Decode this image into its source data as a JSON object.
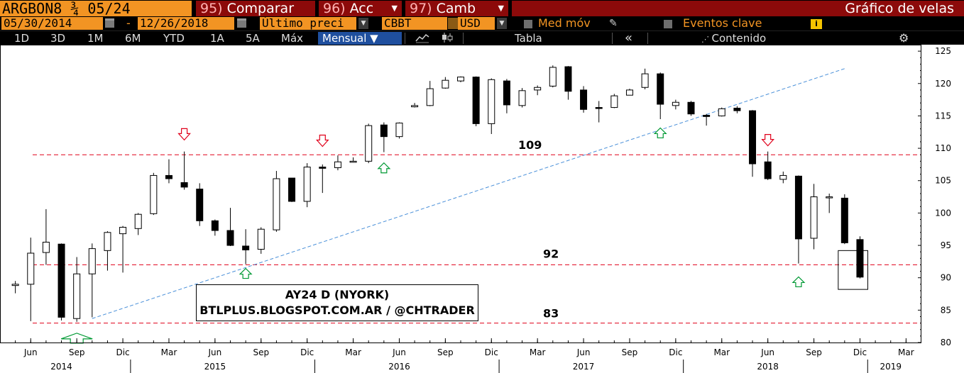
{
  "header": {
    "ticker": "ARGBON8 ¾ 05/24",
    "fn": [
      {
        "num": "95)",
        "label": "Comparar"
      },
      {
        "num": "96)",
        "label": "Acc"
      },
      {
        "num": "97)",
        "label": "Camb"
      }
    ],
    "title": "Gráfico de velas"
  },
  "controls": {
    "start_date": "05/30/2014",
    "dash": "-",
    "end_date": "12/26/2018",
    "price_field": "Último preci",
    "source": "CBBT",
    "currency": "USD",
    "mov_avg": "Med móv",
    "key_events": "Eventos clave",
    "info": "i"
  },
  "toolbar": {
    "ranges": [
      "1D",
      "3D",
      "1M",
      "6M",
      "YTD",
      "1A",
      "5A",
      "Máx"
    ],
    "period": "Mensual",
    "period_arrow": "▼",
    "table": "Tabla",
    "collapse": "«",
    "content": "Contenido",
    "settings_icon": "gear-icon"
  },
  "chart_data": {
    "type": "candlestick",
    "title": "",
    "xlabel": "",
    "ylabel": "",
    "ylim": [
      80,
      126
    ],
    "yticks": [
      80,
      85,
      90,
      95,
      100,
      105,
      110,
      115,
      120,
      125
    ],
    "xlim": [
      "2014-04",
      "2019-04"
    ],
    "xticks": [
      {
        "date": "2014-06",
        "label": "Jun"
      },
      {
        "date": "2014-09",
        "label": "Sep"
      },
      {
        "date": "2014-12",
        "label": "Dic"
      },
      {
        "date": "2015-03",
        "label": "Mar"
      },
      {
        "date": "2015-06",
        "label": "Jun"
      },
      {
        "date": "2015-09",
        "label": "Sep"
      },
      {
        "date": "2015-12",
        "label": "Dic"
      },
      {
        "date": "2016-03",
        "label": "Mar"
      },
      {
        "date": "2016-06",
        "label": "Jun"
      },
      {
        "date": "2016-09",
        "label": "Sep"
      },
      {
        "date": "2016-12",
        "label": "Dic"
      },
      {
        "date": "2017-03",
        "label": "Mar"
      },
      {
        "date": "2017-06",
        "label": "Jun"
      },
      {
        "date": "2017-09",
        "label": "Sep"
      },
      {
        "date": "2017-12",
        "label": "Dic"
      },
      {
        "date": "2018-03",
        "label": "Mar"
      },
      {
        "date": "2018-06",
        "label": "Jun"
      },
      {
        "date": "2018-09",
        "label": "Sep"
      },
      {
        "date": "2018-12",
        "label": "Dic"
      },
      {
        "date": "2019-03",
        "label": "Mar"
      }
    ],
    "years": [
      {
        "date": "2014-08",
        "label": "2014"
      },
      {
        "date": "2015-06",
        "label": "2015"
      },
      {
        "date": "2016-06",
        "label": "2016"
      },
      {
        "date": "2017-06",
        "label": "2017"
      },
      {
        "date": "2018-06",
        "label": "2018"
      },
      {
        "date": "2019-02",
        "label": "2019"
      }
    ],
    "candles": [
      {
        "date": "2014-05",
        "open": 88.8,
        "high": 89.5,
        "low": 87.6,
        "close": 89.0
      },
      {
        "date": "2014-06",
        "open": 89.0,
        "high": 96.2,
        "low": 83.3,
        "close": 93.8
      },
      {
        "date": "2014-07",
        "open": 93.9,
        "high": 100.6,
        "low": 92.0,
        "close": 95.5
      },
      {
        "date": "2014-08",
        "open": 95.2,
        "high": 95.3,
        "low": 83.4,
        "close": 83.9
      },
      {
        "date": "2014-09",
        "open": 83.7,
        "high": 93.2,
        "low": 83.2,
        "close": 90.6
      },
      {
        "date": "2014-10",
        "open": 90.6,
        "high": 95.3,
        "low": 83.9,
        "close": 94.5
      },
      {
        "date": "2014-11",
        "open": 94.2,
        "high": 97.2,
        "low": 91.1,
        "close": 97.0
      },
      {
        "date": "2014-12",
        "open": 96.8,
        "high": 98.0,
        "low": 90.8,
        "close": 97.8
      },
      {
        "date": "2015-01",
        "open": 97.6,
        "high": 100.0,
        "low": 96.6,
        "close": 99.8
      },
      {
        "date": "2015-02",
        "open": 99.9,
        "high": 106.2,
        "low": 99.7,
        "close": 105.8
      },
      {
        "date": "2015-03",
        "open": 105.8,
        "high": 108.3,
        "low": 104.6,
        "close": 105.3
      },
      {
        "date": "2015-04",
        "open": 104.7,
        "high": 109.5,
        "low": 103.6,
        "close": 104.0
      },
      {
        "date": "2015-05",
        "open": 103.7,
        "high": 104.6,
        "low": 98.0,
        "close": 98.8
      },
      {
        "date": "2015-06",
        "open": 98.8,
        "high": 99.0,
        "low": 96.5,
        "close": 97.3
      },
      {
        "date": "2015-07",
        "open": 97.3,
        "high": 100.8,
        "low": 94.9,
        "close": 95.0
      },
      {
        "date": "2015-08",
        "open": 94.9,
        "high": 97.5,
        "low": 92.1,
        "close": 94.3
      },
      {
        "date": "2015-09",
        "open": 94.4,
        "high": 97.8,
        "low": 93.7,
        "close": 97.5
      },
      {
        "date": "2015-10",
        "open": 97.4,
        "high": 106.5,
        "low": 97.1,
        "close": 105.3
      },
      {
        "date": "2015-11",
        "open": 105.4,
        "high": 105.4,
        "low": 101.7,
        "close": 101.8
      },
      {
        "date": "2015-12",
        "open": 101.8,
        "high": 107.7,
        "low": 100.9,
        "close": 107.1
      },
      {
        "date": "2016-01",
        "open": 107.1,
        "high": 107.5,
        "low": 103.1,
        "close": 106.9
      },
      {
        "date": "2016-02",
        "open": 107.0,
        "high": 108.9,
        "low": 106.6,
        "close": 107.9
      },
      {
        "date": "2016-03",
        "open": 107.9,
        "high": 108.6,
        "low": 107.8,
        "close": 108.0
      },
      {
        "date": "2016-04",
        "open": 108.0,
        "high": 113.8,
        "low": 107.7,
        "close": 113.5
      },
      {
        "date": "2016-05",
        "open": 113.6,
        "high": 114.0,
        "low": 109.4,
        "close": 111.8
      },
      {
        "date": "2016-06",
        "open": 111.8,
        "high": 114.0,
        "low": 111.5,
        "close": 113.9
      },
      {
        "date": "2016-07",
        "open": 116.4,
        "high": 117.0,
        "low": 116.3,
        "close": 116.6
      },
      {
        "date": "2016-08",
        "open": 116.6,
        "high": 120.4,
        "low": 116.5,
        "close": 119.2
      },
      {
        "date": "2016-09",
        "open": 119.3,
        "high": 121.0,
        "low": 119.2,
        "close": 120.5
      },
      {
        "date": "2016-10",
        "open": 120.4,
        "high": 121.1,
        "low": 120.2,
        "close": 121.0
      },
      {
        "date": "2016-11",
        "open": 121.0,
        "high": 121.1,
        "low": 113.4,
        "close": 113.8
      },
      {
        "date": "2016-12",
        "open": 113.8,
        "high": 120.8,
        "low": 112.2,
        "close": 120.6
      },
      {
        "date": "2017-01",
        "open": 120.4,
        "high": 120.7,
        "low": 115.4,
        "close": 116.7
      },
      {
        "date": "2017-02",
        "open": 116.6,
        "high": 119.3,
        "low": 116.3,
        "close": 118.9
      },
      {
        "date": "2017-03",
        "open": 119.0,
        "high": 119.7,
        "low": 118.2,
        "close": 119.4
      },
      {
        "date": "2017-04",
        "open": 119.6,
        "high": 122.8,
        "low": 119.4,
        "close": 122.5
      },
      {
        "date": "2017-05",
        "open": 122.6,
        "high": 122.7,
        "low": 117.5,
        "close": 118.8
      },
      {
        "date": "2017-06",
        "open": 119.0,
        "high": 119.6,
        "low": 115.5,
        "close": 116.0
      },
      {
        "date": "2017-07",
        "open": 116.3,
        "high": 117.3,
        "low": 114.0,
        "close": 116.2
      },
      {
        "date": "2017-08",
        "open": 116.3,
        "high": 118.4,
        "low": 116.2,
        "close": 118.1
      },
      {
        "date": "2017-09",
        "open": 118.2,
        "high": 119.2,
        "low": 118.2,
        "close": 119.0
      },
      {
        "date": "2017-10",
        "open": 119.4,
        "high": 122.3,
        "low": 119.1,
        "close": 121.5
      },
      {
        "date": "2017-11",
        "open": 121.5,
        "high": 121.7,
        "low": 114.5,
        "close": 116.8
      },
      {
        "date": "2017-12",
        "open": 116.6,
        "high": 117.5,
        "low": 116.0,
        "close": 117.1
      },
      {
        "date": "2018-01",
        "open": 117.1,
        "high": 117.3,
        "low": 115.0,
        "close": 115.3
      },
      {
        "date": "2018-02",
        "open": 115.1,
        "high": 115.3,
        "low": 113.5,
        "close": 114.9
      },
      {
        "date": "2018-03",
        "open": 115.0,
        "high": 116.3,
        "low": 114.9,
        "close": 116.1
      },
      {
        "date": "2018-04",
        "open": 116.2,
        "high": 116.5,
        "low": 115.4,
        "close": 115.8
      },
      {
        "date": "2018-05",
        "open": 115.8,
        "high": 115.9,
        "low": 105.6,
        "close": 107.6
      },
      {
        "date": "2018-06",
        "open": 107.9,
        "high": 109.5,
        "low": 105.1,
        "close": 105.3
      },
      {
        "date": "2018-07",
        "open": 105.2,
        "high": 106.4,
        "low": 104.6,
        "close": 105.8
      },
      {
        "date": "2018-08",
        "open": 105.7,
        "high": 105.8,
        "low": 92.2,
        "close": 96.0
      },
      {
        "date": "2018-09",
        "open": 96.1,
        "high": 104.5,
        "low": 94.4,
        "close": 102.5
      },
      {
        "date": "2018-10",
        "open": 102.4,
        "high": 103.0,
        "low": 100.0,
        "close": 102.5
      },
      {
        "date": "2018-11",
        "open": 102.3,
        "high": 102.9,
        "low": 95.2,
        "close": 95.4
      },
      {
        "date": "2018-12",
        "open": 95.9,
        "high": 96.4,
        "low": 89.9,
        "close": 90.1
      }
    ],
    "levels": [
      {
        "value": 109,
        "label": "109",
        "color": "#e0001a"
      },
      {
        "value": 92,
        "label": "92",
        "color": "#e0001a"
      },
      {
        "value": 83,
        "label": "83",
        "color": "#e0001a"
      }
    ],
    "trendline": {
      "from": {
        "date": "2014-10",
        "value": 83.7
      },
      "to": {
        "date": "2018-11",
        "value": 122.3
      },
      "color": "#4a90d9"
    },
    "markers": [
      {
        "type": "down",
        "date": "2015-04",
        "value": 111.5,
        "color": "#e0001a"
      },
      {
        "type": "down",
        "date": "2016-01",
        "value": 110.5,
        "color": "#e0001a"
      },
      {
        "type": "down",
        "date": "2018-06",
        "value": 110.6,
        "color": "#e0001a"
      },
      {
        "type": "up",
        "date": "2014-09",
        "value": 81.0,
        "color": "#009933"
      },
      {
        "type": "up",
        "date": "2015-08",
        "value": 91.0,
        "color": "#009933"
      },
      {
        "type": "up",
        "date": "2016-05",
        "value": 107.3,
        "color": "#009933"
      },
      {
        "type": "up",
        "date": "2017-11",
        "value": 112.7,
        "color": "#009933"
      },
      {
        "type": "up",
        "date": "2018-08",
        "value": 89.7,
        "color": "#009933"
      }
    ],
    "highlight_box": {
      "from": "2018-11",
      "to": "2018-12",
      "low": 88.2,
      "high": 94.2
    },
    "watermark": [
      "AY24 D (NYORK)",
      "BTLPLUS.BLOGSPOT.COM.AR / @CHTRADER"
    ]
  }
}
